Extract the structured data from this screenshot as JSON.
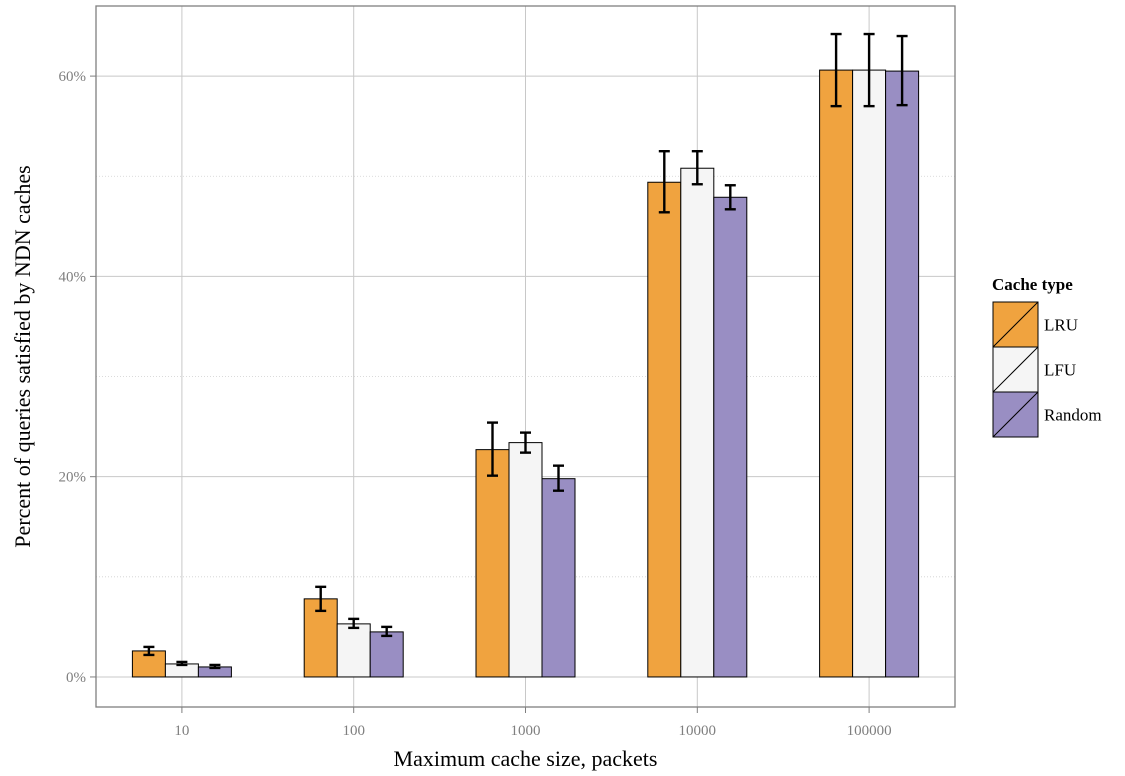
{
  "chart_data": {
    "type": "bar",
    "xlabel": "Maximum cache size, packets",
    "ylabel": "Percent of queries satisfied by NDN caches",
    "categories": [
      "10",
      "100",
      "1000",
      "10000",
      "100000"
    ],
    "ylim": [
      -3,
      67
    ],
    "y_ticks": [
      0,
      20,
      40,
      60
    ],
    "y_tick_labels": [
      "0%",
      "20%",
      "40%",
      "60%"
    ],
    "grid": true,
    "legend": {
      "title": "Cache type",
      "position": "right"
    },
    "series": [
      {
        "name": "LRU",
        "color": "#f0a33f",
        "values": [
          2.6,
          7.8,
          22.7,
          49.4,
          60.6
        ],
        "err_low": [
          2.2,
          6.6,
          20.1,
          46.4,
          57.0
        ],
        "err_high": [
          3.0,
          9.0,
          25.4,
          52.5,
          64.2
        ]
      },
      {
        "name": "LFU",
        "color": "#f5f5f5",
        "values": [
          1.3,
          5.3,
          23.4,
          50.8,
          60.6
        ],
        "err_low": [
          1.2,
          4.9,
          22.4,
          49.2,
          57.0
        ],
        "err_high": [
          1.5,
          5.8,
          24.4,
          52.5,
          64.2
        ]
      },
      {
        "name": "Random",
        "color": "#998ec3",
        "values": [
          1.0,
          4.5,
          19.8,
          47.9,
          60.5
        ],
        "err_low": [
          0.9,
          4.1,
          18.6,
          46.7,
          57.1
        ],
        "err_high": [
          1.2,
          5.0,
          21.1,
          49.1,
          64.0
        ]
      }
    ]
  }
}
